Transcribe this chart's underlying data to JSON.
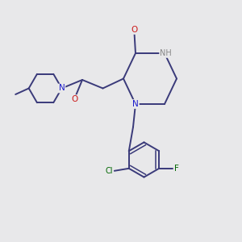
{
  "background_color": "#e8e8ea",
  "bond_color": "#3a3a7a",
  "atom_colors": {
    "N": "#1a1acc",
    "NH": "#888888",
    "O": "#cc1a1a",
    "Cl": "#006600",
    "F": "#006600"
  },
  "figsize": [
    3.0,
    3.0
  ],
  "dpi": 100
}
